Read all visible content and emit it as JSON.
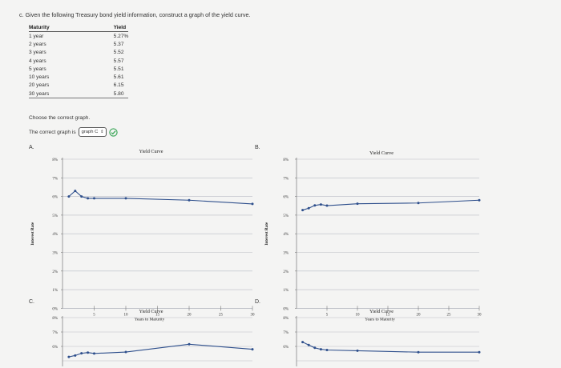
{
  "question": {
    "prompt": "c. Given the following Treasury bond yield information, construct a graph of the yield curve."
  },
  "table": {
    "headers": [
      "Maturity",
      "Yield"
    ],
    "rows": [
      {
        "maturity": "1 year",
        "yield": "5.27%"
      },
      {
        "maturity": "2 years",
        "yield": "5.37"
      },
      {
        "maturity": "3 years",
        "yield": "5.52"
      },
      {
        "maturity": "4 years",
        "yield": "5.57"
      },
      {
        "maturity": "5 years",
        "yield": "5.51"
      },
      {
        "maturity": "10 years",
        "yield": "5.61"
      },
      {
        "maturity": "20 years",
        "yield": "6.15"
      },
      {
        "maturity": "30 years",
        "yield": "5.80"
      }
    ]
  },
  "choose_text": "Choose the correct graph.",
  "answer": {
    "label": "The correct graph is",
    "selected": "graph C",
    "status_icon": "check-circle-icon",
    "status_color": "#3aa657"
  },
  "panel_labels": [
    "A.",
    "B.",
    "C.",
    "D."
  ],
  "chart_data": [
    {
      "panel": "A",
      "type": "line",
      "title": "Yield Curve",
      "xlabel": "Years to Maturity",
      "ylabel": "Interest Rate",
      "x": [
        1,
        2,
        3,
        4,
        5,
        10,
        20,
        30
      ],
      "series": [
        {
          "values": [
            6.0,
            6.3,
            6.0,
            5.9,
            5.9,
            5.9,
            5.8,
            5.6
          ]
        }
      ],
      "xlim": [
        0,
        30
      ],
      "ylim": [
        0,
        8
      ],
      "xticks": [
        "5",
        "10",
        "15",
        "20",
        "25",
        "30"
      ],
      "yticks": [
        "0%",
        "1%",
        "2%",
        "3%",
        "4%",
        "5%",
        "6%",
        "7%",
        "8%"
      ],
      "color": "#2e4f8c",
      "grid": true
    },
    {
      "panel": "B",
      "type": "line",
      "title": "Yield Curve",
      "xlabel": "Years to Maturity",
      "ylabel": "Interest Rate",
      "x": [
        1,
        2,
        3,
        4,
        5,
        10,
        20,
        30
      ],
      "series": [
        {
          "values": [
            5.27,
            5.37,
            5.52,
            5.57,
            5.51,
            5.61,
            5.65,
            5.8
          ]
        }
      ],
      "xlim": [
        0,
        30
      ],
      "ylim": [
        0,
        8
      ],
      "xticks": [
        "5",
        "10",
        "15",
        "20",
        "25",
        "30"
      ],
      "yticks": [
        "0%",
        "1%",
        "2%",
        "3%",
        "4%",
        "5%",
        "6%",
        "7%",
        "8%"
      ],
      "color": "#2e4f8c",
      "grid": true
    },
    {
      "panel": "C",
      "type": "line",
      "title": "Yield Curve",
      "x": [
        1,
        2,
        3,
        4,
        5,
        10,
        20,
        30
      ],
      "series": [
        {
          "values": [
            5.27,
            5.37,
            5.52,
            5.57,
            5.51,
            5.61,
            6.15,
            5.8
          ]
        }
      ],
      "xlim": [
        0,
        30
      ],
      "ylim": [
        0,
        8
      ],
      "yticks": [
        "6%",
        "7%",
        "8%"
      ],
      "color": "#2e4f8c",
      "grid": true
    },
    {
      "panel": "D",
      "type": "line",
      "title": "Yield Curve",
      "x": [
        1,
        2,
        3,
        4,
        5,
        10,
        20,
        30
      ],
      "series": [
        {
          "values": [
            6.3,
            6.1,
            5.9,
            5.8,
            5.75,
            5.7,
            5.6,
            5.6
          ]
        }
      ],
      "xlim": [
        0,
        30
      ],
      "ylim": [
        0,
        8
      ],
      "yticks": [
        "6%",
        "7%",
        "8%"
      ],
      "color": "#2e4f8c",
      "grid": true
    }
  ]
}
